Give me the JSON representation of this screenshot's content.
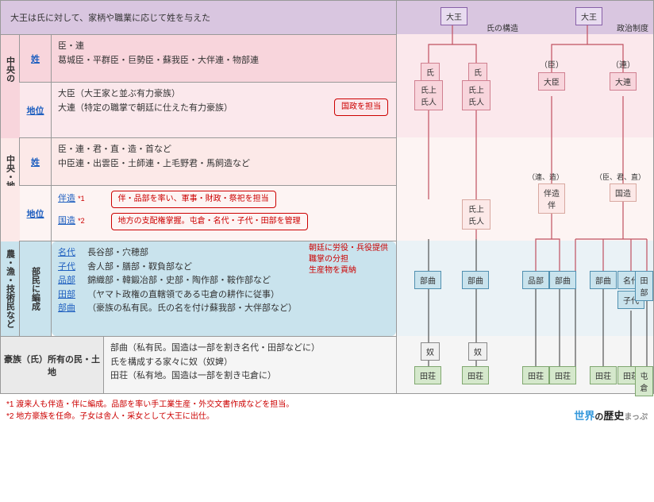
{
  "header": {
    "title": "大王は氏に対して、家柄や職業に応じて姓を与えた"
  },
  "rightHeaders": {
    "left": "氏の構造",
    "right": "政治制度"
  },
  "section1": {
    "vlabel": "中央の有力豪族",
    "row1": {
      "label": "姓",
      "line1": "臣・連",
      "line2": "葛城臣・平群臣・巨勢臣・蘇我臣・大伴連・物部連"
    },
    "row2": {
      "label": "地位",
      "line1": "大臣（大王家と並ぶ有力豪族）",
      "line2": "大連（特定の職掌で朝廷に仕えた有力豪族）",
      "badge": "国政を担当"
    }
  },
  "section2": {
    "vlabel": "中央・地方の豪族",
    "row1": {
      "label": "姓",
      "line1": "臣・連・君・直・造・首など",
      "line2": "中臣連・出雲臣・土師連・上毛野君・馬飼造など"
    },
    "row2": {
      "label": "地位",
      "line1a": "伴造",
      "line1b": "*1",
      "line2a": "国造",
      "line2b": "*2",
      "badge1": "伴・品部を率い、軍事・財政・祭祀を担当",
      "badge2": "地方の支配権掌握。屯倉・名代・子代・田部を管理"
    }
  },
  "section3": {
    "vlabel": "農・漁・技術民など",
    "sublabel": "部民に編成",
    "badges": {
      "b1": "朝廷に労役・兵役提供",
      "b2": "職掌の分担",
      "b3": "生産物を貢納"
    },
    "rows": [
      {
        "k": "名代",
        "v": "長谷部・穴穂部"
      },
      {
        "k": "子代",
        "v": "舎人部・膳部・靫負部など"
      },
      {
        "k": "品部",
        "v": "錦織部・韓鍛冶部・史部・陶作部・鞍作部など"
      },
      {
        "k": "田部",
        "v": "（ヤマト政権の直轄領である屯倉の耕作に従事）"
      },
      {
        "k": "部曲",
        "v": "（豪族の私有民。氏の名を付け蘇我部・大伴部など）"
      }
    ]
  },
  "section4": {
    "label": "豪族（氏）所有の民・土地",
    "line1": "部曲（私有民。国造は一部を割き名代・田部などに）",
    "line2": "氏を構成する家々に奴（奴婢）",
    "line3": "田荘（私有地。国造は一部を割き屯倉に）"
  },
  "footnotes": {
    "f1": "*1 渡来人も伴造・伴に編成。品部を率い手工業生産・外交文書作成などを担当。",
    "f2": "*2 地方豪族を任命。子女は舎人・采女として大王に出仕。"
  },
  "logo": {
    "a": "世界",
    "b": "の",
    "c": "歴史",
    "d": "まっぷ"
  },
  "tree": {
    "daio": "大王",
    "uji": "氏",
    "ujinokami": "氏上",
    "ujibito": "氏人",
    "omi": "（臣）",
    "muraji": "（連）",
    "oomi": "大臣",
    "oomuraji": "大連",
    "muraji_miyatsuko": "（連、造）",
    "omi_kimi_atai": "（臣、君、直）",
    "tomonomiyatsuko": "伴造",
    "tomo": "伴",
    "kuninomiyatsuko": "国造",
    "kakibe": "部曲",
    "shinabe": "品部",
    "nashiro": "名代",
    "koshiro": "子代",
    "tabe": "田部",
    "yatsuko": "奴",
    "tadokoro": "田荘",
    "miyake": "屯倉"
  },
  "colors": {
    "purple": "#d9c6e0",
    "pink": "#f8d5dc",
    "lpink": "#fce9e8",
    "blue": "#c9e3ed",
    "green": "#d5e8cc",
    "red": "#cc0000",
    "black": "#333333",
    "linkblue": "#2060c0"
  }
}
